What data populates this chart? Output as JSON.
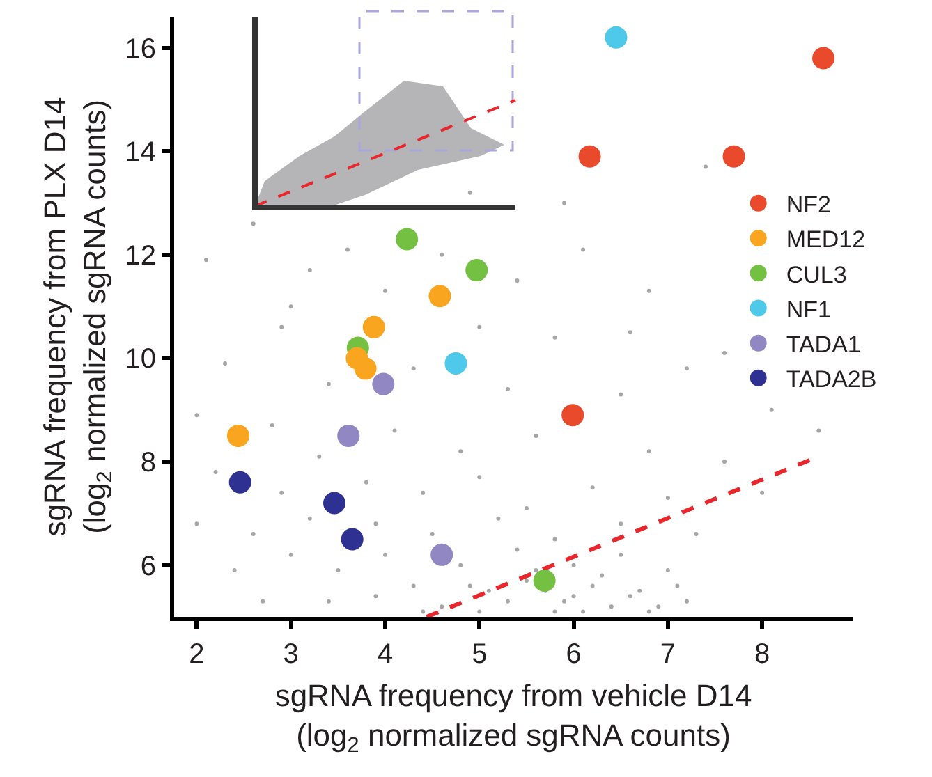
{
  "chart_data": {
    "type": "scatter",
    "xlabel": "sgRNA frequency from vehicle D14\n(log$_{2}$ normalized sgRNA counts)",
    "ylabel": "sgRNA frequency from PLX D14\n(log$_{2}$ normalized sgRNA counts)",
    "xlim": [
      1.76,
      8.96
    ],
    "ylim": [
      5.0,
      16.6
    ],
    "xticks": [
      2,
      3,
      4,
      5,
      6,
      7,
      8
    ],
    "yticks": [
      6,
      8,
      10,
      12,
      14,
      16
    ],
    "legend": "right",
    "marker": "circle",
    "series": [
      {
        "color": "#a6a6a6",
        "x": [
          2.1,
          3.2,
          4.9,
          5.9,
          7.4,
          6.1,
          8.3,
          2.6,
          3.6,
          4.6,
          5.4,
          6.8,
          3.0,
          4.0,
          5.0,
          5.8,
          6.6,
          7.6,
          2.9,
          2.3,
          3.4,
          4.3,
          5.3,
          6.5,
          7.2,
          8.1,
          8.6,
          2.0,
          2.8,
          3.3,
          4.1,
          4.8,
          5.6,
          6.8,
          7.6,
          2.2,
          2.9,
          3.8,
          4.4,
          5.0,
          5.5,
          6.2,
          7.0,
          8.0,
          2.0,
          2.6,
          3.2,
          3.9,
          4.5,
          5.2,
          5.8,
          6.5,
          7.3,
          2.4,
          3.0,
          3.5,
          4.0,
          4.3,
          4.8,
          5.1,
          5.4,
          5.6,
          5.9,
          6.0,
          6.2,
          6.4,
          6.5,
          6.7,
          6.9,
          7.0,
          7.2,
          3.4,
          3.9,
          4.6,
          5.0,
          5.3,
          5.7,
          6.1,
          6.3,
          6.6,
          6.8,
          7.1,
          5.5,
          6.0,
          5.8,
          4.9,
          4.4,
          2.7
        ],
        "values": [
          11.9,
          11.7,
          13.2,
          13.0,
          13.7,
          12.1,
          13.0,
          12.6,
          12.1,
          12.0,
          11.5,
          11.3,
          11.0,
          11.3,
          10.6,
          10.4,
          10.5,
          10.1,
          10.6,
          9.9,
          9.5,
          9.8,
          9.4,
          9.3,
          9.8,
          9.0,
          8.6,
          8.9,
          8.7,
          8.1,
          8.6,
          8.2,
          8.5,
          8.2,
          8.0,
          7.8,
          7.4,
          7.6,
          7.4,
          7.7,
          7.1,
          7.5,
          7.3,
          7.4,
          6.8,
          6.6,
          6.9,
          6.8,
          6.6,
          6.9,
          6.5,
          6.8,
          6.6,
          5.9,
          6.2,
          5.9,
          6.2,
          5.6,
          6.0,
          5.5,
          6.3,
          5.9,
          5.3,
          6.0,
          5.6,
          5.2,
          6.2,
          5.5,
          5.2,
          5.9,
          5.3,
          5.3,
          5.4,
          5.2,
          5.1,
          5.3,
          5.5,
          5.1,
          5.8,
          5.4,
          5.1,
          5.6,
          5.7,
          5.4,
          5.1,
          5.6,
          5.1,
          5.3
        ]
      },
      {
        "type": "line",
        "color": "#e8262b",
        "line_style": "dashed",
        "marker": "none",
        "x": [
          4.44,
          8.52
        ],
        "values": [
          5.0,
          8.04
        ]
      },
      {
        "name": "NF2",
        "color": "#ea4a2c",
        "x": [
          8.65,
          6.17,
          7.7,
          5.99
        ],
        "values": [
          15.8,
          13.9,
          13.9,
          8.9
        ]
      },
      {
        "name": "MED12",
        "color": "#f9a51f",
        "x": [
          4.58,
          3.88,
          3.7,
          3.79,
          2.44
        ],
        "values": [
          11.2,
          10.6,
          10.0,
          9.8,
          8.5
        ]
      },
      {
        "name": "CUL3",
        "color": "#74c043",
        "x": [
          4.23,
          4.97,
          3.71,
          5.69
        ],
        "values": [
          12.3,
          11.7,
          10.2,
          5.7
        ]
      },
      {
        "name": "NF1",
        "color": "#4ec9ea",
        "x": [
          6.45,
          4.75
        ],
        "values": [
          16.2,
          9.9
        ]
      },
      {
        "name": "TADA1",
        "color": "#9187c2",
        "x": [
          3.98,
          3.61,
          4.6
        ],
        "values": [
          9.5,
          8.5,
          6.2
        ]
      },
      {
        "name": "TADA2B",
        "color": "#2e3192",
        "x": [
          2.46,
          3.46,
          3.65
        ],
        "values": [
          7.6,
          7.2,
          6.5
        ]
      }
    ]
  }
}
